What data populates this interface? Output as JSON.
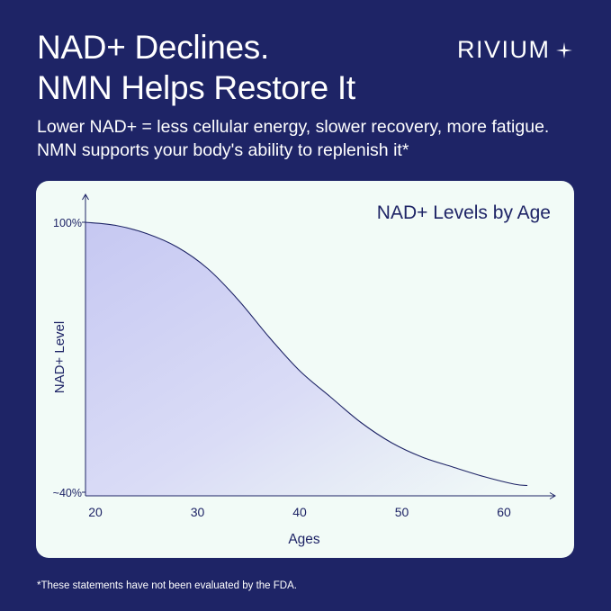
{
  "header": {
    "title_line1": "NAD+ Declines.",
    "title_line2": "NMN Helps Restore It",
    "subtitle_line1": "Lower NAD+ = less cellular energy, slower recovery, more fatigue.",
    "subtitle_line2": "NMN supports your body's ability to replenish it*"
  },
  "brand": {
    "name": "RIVIUM",
    "icon": "sparkle-star-icon"
  },
  "footnote": "*These statements have not been evaluated by the FDA.",
  "colors": {
    "background": "#1e2466",
    "card": "#f2fbf7",
    "ink": "#1e2466",
    "fill": "#c9cbf3"
  },
  "chart_data": {
    "type": "area",
    "title": "NAD+ Levels by Age",
    "xlabel": "Ages",
    "ylabel": "NAD+ Level",
    "x_ticks": [
      "20",
      "30",
      "40",
      "50",
      "60"
    ],
    "y_ticks": [
      "100%",
      "~40%"
    ],
    "xlim": [
      20,
      65
    ],
    "ylim": [
      40,
      100
    ],
    "series": [
      {
        "x": [
          20,
          22,
          25,
          28,
          31,
          34,
          37,
          40,
          43,
          46,
          49,
          52,
          55,
          58,
          61,
          62.3
        ],
        "y": [
          100,
          99.3,
          97.5,
          94.5,
          89.7,
          82.7,
          74.5,
          67.0,
          61.2,
          55.5,
          51.0,
          47.8,
          45.6,
          43.5,
          41.8,
          41.5
        ]
      }
    ],
    "grid": false,
    "legend": "none"
  }
}
